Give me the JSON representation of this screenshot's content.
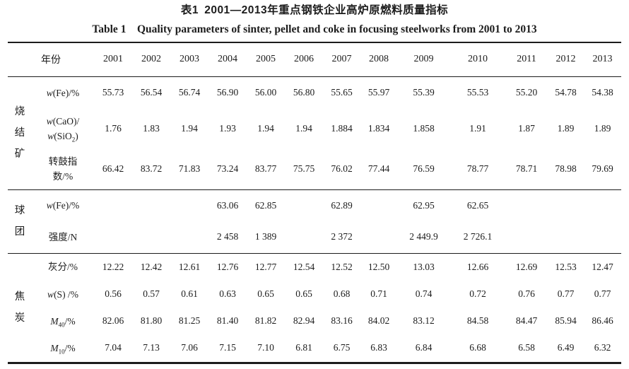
{
  "titles": {
    "zh": "表1 2001—2013年重点钢铁企业高炉原燃料质量指标",
    "en": "Table 1  Quality parameters of sinter, pellet and coke in focusing steelworks from 2001 to 2013"
  },
  "table": {
    "year_header": "年份",
    "years": [
      "2001",
      "2002",
      "2003",
      "2004",
      "2005",
      "2006",
      "2007",
      "2008",
      "2009",
      "2010",
      "2011",
      "2012",
      "2013"
    ],
    "groups": [
      {
        "name": "烧结矿",
        "rows": [
          {
            "label_text": "w(Fe)/%",
            "label": [
              {
                "text": "w",
                "italic": true
              },
              {
                "text": "(Fe)/%"
              }
            ],
            "values": [
              "55.73",
              "56.54",
              "56.74",
              "56.90",
              "56.00",
              "56.80",
              "55.65",
              "55.97",
              "55.39",
              "55.53",
              "55.20",
              "54.78",
              "54.38"
            ]
          },
          {
            "label_text": "w(CaO)/w(SiO2)",
            "label": [
              {
                "text": "w",
                "italic": true
              },
              {
                "text": "(CaO)/"
              },
              {
                "break": true
              },
              {
                "text": "w",
                "italic": true
              },
              {
                "text": "(SiO"
              },
              {
                "text": "2",
                "sub": true
              },
              {
                "text": ")"
              }
            ],
            "values": [
              "1.76",
              "1.83",
              "1.94",
              "1.93",
              "1.94",
              "1.94",
              "1.884",
              "1.834",
              "1.858",
              "1.91",
              "1.87",
              "1.89",
              "1.89"
            ]
          },
          {
            "label_text": "转鼓指数/%",
            "label": [
              {
                "text": "转鼓指"
              },
              {
                "break": true
              },
              {
                "text": "数/%"
              }
            ],
            "values": [
              "66.42",
              "83.72",
              "71.83",
              "73.24",
              "83.77",
              "75.75",
              "76.02",
              "77.44",
              "76.59",
              "78.77",
              "78.71",
              "78.98",
              "79.69"
            ]
          }
        ]
      },
      {
        "name": "球团",
        "rows": [
          {
            "label_text": "w(Fe)/%",
            "label": [
              {
                "text": "w",
                "italic": true
              },
              {
                "text": "(Fe)/%"
              }
            ],
            "values": [
              "",
              "",
              "",
              "63.06",
              "62.85",
              "",
              "62.89",
              "",
              "62.95",
              "62.65",
              "",
              "",
              ""
            ]
          },
          {
            "label_text": "强度/N",
            "label": [
              {
                "text": "强度/N"
              }
            ],
            "values": [
              "",
              "",
              "",
              "2 458",
              "1 389",
              "",
              "2 372",
              "",
              "2 449.9",
              "2 726.1",
              "",
              "",
              ""
            ]
          }
        ]
      },
      {
        "name": "焦炭",
        "rows": [
          {
            "label_text": "灰分/%",
            "label": [
              {
                "text": "灰分/%"
              }
            ],
            "values": [
              "12.22",
              "12.42",
              "12.61",
              "12.76",
              "12.77",
              "12.54",
              "12.52",
              "12.50",
              "13.03",
              "12.66",
              "12.69",
              "12.53",
              "12.47"
            ]
          },
          {
            "label_text": "w(S) /%",
            "label": [
              {
                "text": "w",
                "italic": true
              },
              {
                "text": "(S) /%"
              }
            ],
            "values": [
              "0.56",
              "0.57",
              "0.61",
              "0.63",
              "0.65",
              "0.65",
              "0.68",
              "0.71",
              "0.74",
              "0.72",
              "0.76",
              "0.77",
              "0.77"
            ]
          },
          {
            "label_text": "M40/%",
            "label": [
              {
                "text": "M",
                "italic": true
              },
              {
                "text": "40",
                "sub": true
              },
              {
                "text": "/%"
              }
            ],
            "values": [
              "82.06",
              "81.80",
              "81.25",
              "81.40",
              "81.82",
              "82.94",
              "83.16",
              "84.02",
              "83.12",
              "84.58",
              "84.47",
              "85.94",
              "86.46"
            ]
          },
          {
            "label_text": "M10/%",
            "label": [
              {
                "text": "M",
                "italic": true
              },
              {
                "text": "10",
                "sub": true
              },
              {
                "text": "/%"
              }
            ],
            "values": [
              "7.04",
              "7.13",
              "7.06",
              "7.15",
              "7.10",
              "6.81",
              "6.75",
              "6.83",
              "6.84",
              "6.68",
              "6.58",
              "6.49",
              "6.32"
            ]
          }
        ]
      }
    ]
  }
}
